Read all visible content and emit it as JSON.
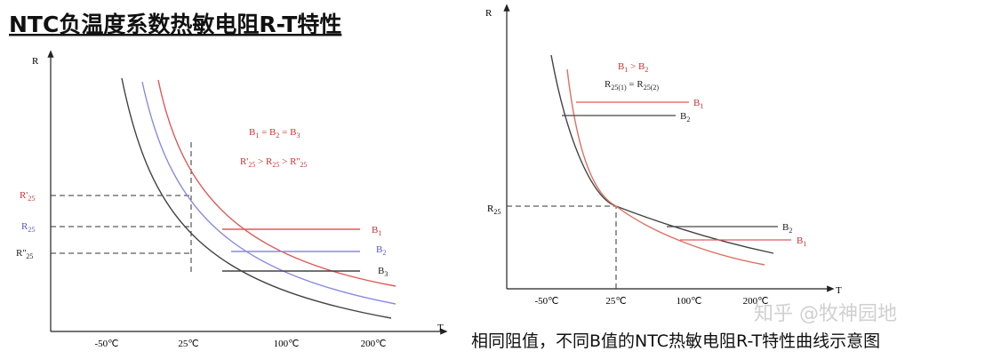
{
  "title": "NTC负温度系数热敏电阻R-T特性",
  "left_figure": {
    "y_axis": "R",
    "x_axis": "T",
    "x_ticks": [
      "-50℃",
      "25℃",
      "100℃",
      "200℃"
    ],
    "r_labels": [
      [
        "R'",
        "25"
      ],
      [
        "R",
        "25"
      ],
      [
        "R''",
        "25"
      ]
    ],
    "relation_b": [
      "B",
      "1",
      " = B",
      "2",
      " = B",
      "3"
    ],
    "relation_r": [
      "R'",
      "25",
      " > R",
      "25",
      " > R''",
      "25"
    ],
    "curve_labels": [
      [
        "B",
        "1"
      ],
      [
        "B",
        "2"
      ],
      [
        "B",
        "3"
      ]
    ]
  },
  "right_figure": {
    "y_axis": "R",
    "x_axis": "T",
    "x_ticks": [
      "-50℃",
      "25℃",
      "100℃",
      "200℃"
    ],
    "r_label": [
      "R",
      "25"
    ],
    "relation_b": [
      "B",
      "1",
      " > B",
      "2"
    ],
    "relation_r": [
      "R",
      "25(1)",
      " = R",
      "25(2)"
    ],
    "upper_labels": [
      [
        "B",
        "1"
      ],
      [
        "B",
        "2"
      ]
    ],
    "lower_labels": [
      [
        "B",
        "2"
      ],
      [
        "B",
        "1"
      ]
    ]
  },
  "caption": "相同阻值，不同B值的NTC热敏电阻R-T特性曲线示意图",
  "watermark": "知乎 @牧神园地"
}
